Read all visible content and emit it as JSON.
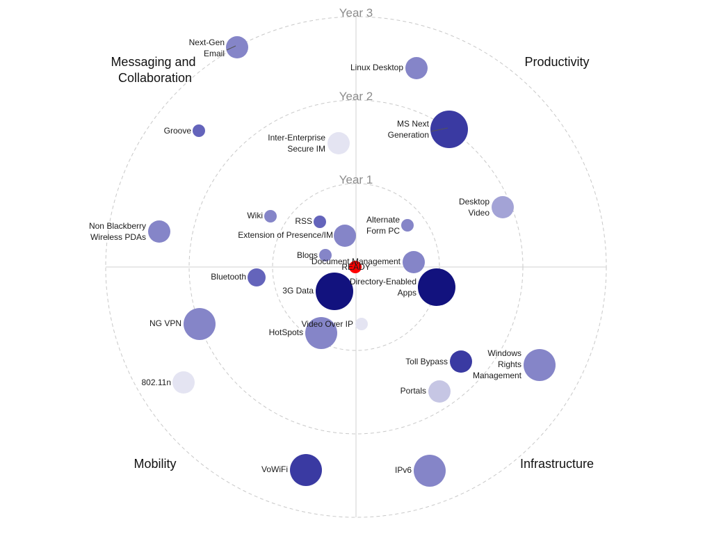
{
  "chart_data": {
    "type": "scatter",
    "title": "",
    "rings": [
      "Year 1",
      "Year 2",
      "Year 3"
    ],
    "quadrants": [
      "Messaging and Collaboration",
      "Productivity",
      "Mobility",
      "Infrastructure"
    ],
    "center_label": "READY",
    "colors": {
      "center": "#ff0000",
      "palette": [
        "#e4e4f2",
        "#c6c6e4",
        "#a3a3d6",
        "#8585c8",
        "#6464bb",
        "#3a3aa2",
        "#12127e"
      ]
    },
    "items": [
      {
        "name": "Next-Gen Email",
        "quadrant": "Messaging and Collaboration",
        "year": 3
      },
      {
        "name": "Groove",
        "quadrant": "Messaging and Collaboration",
        "year": 3
      },
      {
        "name": "Inter-Enterprise Secure IM",
        "quadrant": "Messaging and Collaboration",
        "year": 2
      },
      {
        "name": "Non Blackberry Wireless PDAs",
        "quadrant": "Messaging and Collaboration",
        "year": 3
      },
      {
        "name": "Wiki",
        "quadrant": "Messaging and Collaboration",
        "year": 2
      },
      {
        "name": "RSS",
        "quadrant": "Messaging and Collaboration",
        "year": 1
      },
      {
        "name": "Extension of Presence/IM",
        "quadrant": "Messaging and Collaboration",
        "year": 1
      },
      {
        "name": "Blogs",
        "quadrant": "Messaging and Collaboration",
        "year": 1
      },
      {
        "name": "Linux Desktop",
        "quadrant": "Productivity",
        "year": 3
      },
      {
        "name": "MS Next Generation",
        "quadrant": "Productivity",
        "year": 2
      },
      {
        "name": "Desktop Video",
        "quadrant": "Productivity",
        "year": 3
      },
      {
        "name": "Alternate Form PC",
        "quadrant": "Productivity",
        "year": 1
      },
      {
        "name": "Document Management",
        "quadrant": "Productivity",
        "year": 1
      },
      {
        "name": "Bluetooth",
        "quadrant": "Mobility",
        "year": 2
      },
      {
        "name": "3G Data",
        "quadrant": "Mobility",
        "year": 1
      },
      {
        "name": "NG VPN",
        "quadrant": "Mobility",
        "year": 3
      },
      {
        "name": "HotSpots",
        "quadrant": "Mobility",
        "year": 1
      },
      {
        "name": "802.11n",
        "quadrant": "Mobility",
        "year": 3
      },
      {
        "name": "VoWiFi",
        "quadrant": "Mobility",
        "year": 3
      },
      {
        "name": "Directory-Enabled Apps",
        "quadrant": "Infrastructure",
        "year": 1
      },
      {
        "name": "Video Over IP",
        "quadrant": "Infrastructure",
        "year": 1
      },
      {
        "name": "Toll Bypass",
        "quadrant": "Infrastructure",
        "year": 2
      },
      {
        "name": "Windows Rights Management",
        "quadrant": "Infrastructure",
        "year": 3
      },
      {
        "name": "Portals",
        "quadrant": "Infrastructure",
        "year": 2
      },
      {
        "name": "IPv6",
        "quadrant": "Infrastructure",
        "year": 3
      }
    ]
  }
}
